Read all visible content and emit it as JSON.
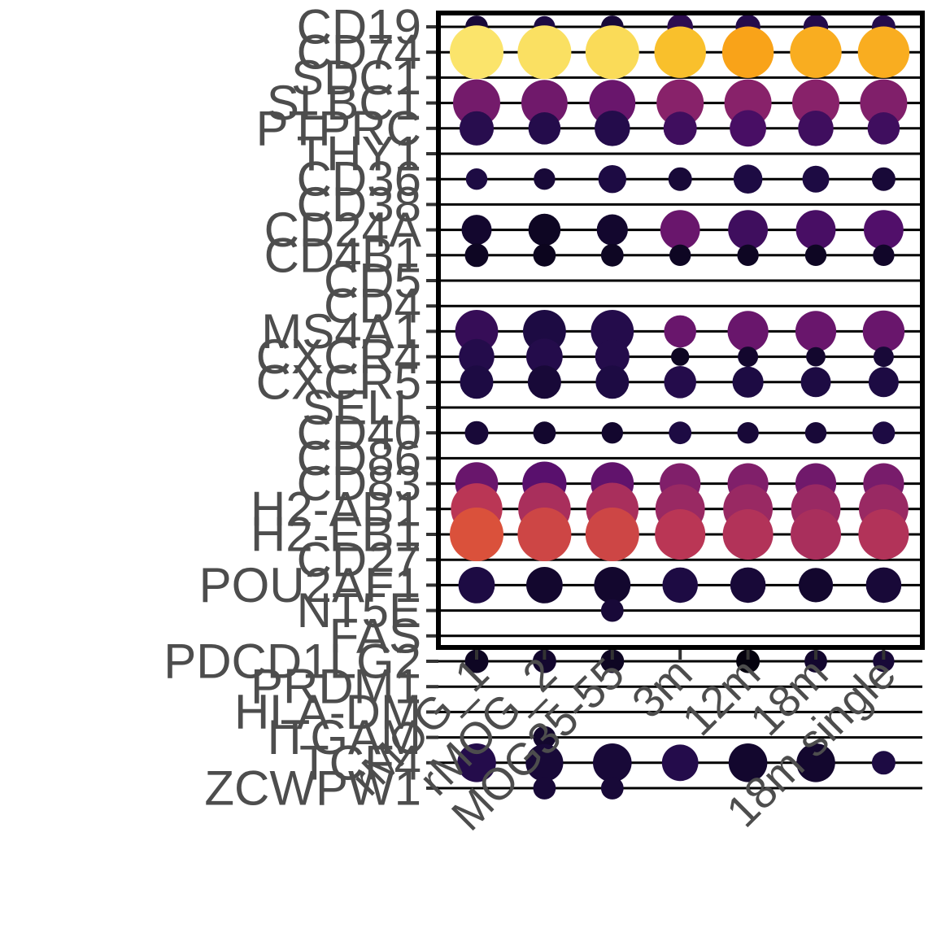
{
  "chart_data": {
    "type": "dotplot",
    "title": "",
    "xlabel": "",
    "ylabel": "",
    "grid": "horizontal lines at each gene",
    "legend": "none",
    "color_scale": "inferno (dark purple = low, yellow = high)",
    "x_categories": [
      "rMOG_1",
      "rMOG_2",
      "MOG35-55",
      "3m",
      "12m",
      "18m",
      "18m single"
    ],
    "y_categories": [
      "CD19",
      "CD74",
      "SDC1",
      "SLBC1",
      "PTPRC",
      "THY1",
      "CD36",
      "CD38",
      "CD24A",
      "CD4B1",
      "CD5",
      "CD4",
      "MS4A1",
      "CXCR4",
      "CXCR5",
      "SELL",
      "CD40",
      "CD86",
      "CD83",
      "H2-AB1",
      "H2-EB1",
      "CD27",
      "POU2AF1",
      "NT5E",
      "FAS",
      "PDCD1LG2",
      "PRDM1",
      "HLA-DM",
      "ITGAM",
      "TCF4",
      "ZCWPW1"
    ],
    "points": [
      {
        "gene": "CD19",
        "values": [
          0.1,
          0.12,
          0.1,
          0.16,
          0.14,
          0.14,
          0.14
        ],
        "sizes": [
          0.42,
          0.4,
          0.42,
          0.48,
          0.46,
          0.46,
          0.44
        ]
      },
      {
        "gene": "CD74",
        "values": [
          0.94,
          0.93,
          0.92,
          0.86,
          0.8,
          0.82,
          0.82
        ],
        "sizes": [
          1.0,
          1.0,
          1.0,
          0.96,
          0.96,
          0.96,
          0.96
        ]
      },
      {
        "gene": "SDC1",
        "values": null,
        "sizes": null
      },
      {
        "gene": "SLBC1",
        "values": [
          0.33,
          0.32,
          0.3,
          0.38,
          0.38,
          0.38,
          0.36
        ],
        "sizes": [
          0.88,
          0.86,
          0.86,
          0.88,
          0.88,
          0.88,
          0.88
        ]
      },
      {
        "gene": "PTPRC",
        "values": [
          0.15,
          0.14,
          0.14,
          0.2,
          0.22,
          0.2,
          0.2
        ],
        "sizes": [
          0.64,
          0.6,
          0.66,
          0.62,
          0.68,
          0.66,
          0.6
        ]
      },
      {
        "gene": "THY1",
        "values": null,
        "sizes": null
      },
      {
        "gene": "CD36",
        "values": [
          0.12,
          0.1,
          0.12,
          0.1,
          0.12,
          0.12,
          0.1
        ],
        "sizes": [
          0.4,
          0.4,
          0.52,
          0.44,
          0.54,
          0.5,
          0.44
        ]
      },
      {
        "gene": "CD38",
        "values": null,
        "sizes": null
      },
      {
        "gene": "CD24A",
        "values": [
          0.08,
          0.06,
          0.08,
          0.3,
          0.2,
          0.22,
          0.24
        ],
        "sizes": [
          0.56,
          0.6,
          0.58,
          0.74,
          0.74,
          0.74,
          0.74
        ]
      },
      {
        "gene": "CD4B1",
        "values": [
          0.06,
          0.05,
          0.06,
          0.06,
          0.06,
          0.06,
          0.07
        ],
        "sizes": [
          0.44,
          0.42,
          0.42,
          0.4,
          0.4,
          0.4,
          0.4
        ]
      },
      {
        "gene": "CD5",
        "values": null,
        "sizes": null
      },
      {
        "gene": "CD4",
        "values": null,
        "sizes": null
      },
      {
        "gene": "MS4A1",
        "values": [
          0.18,
          0.12,
          0.14,
          0.3,
          0.3,
          0.3,
          0.3
        ],
        "sizes": [
          0.8,
          0.8,
          0.8,
          0.6,
          0.76,
          0.76,
          0.78
        ]
      },
      {
        "gene": "CXCR4",
        "values": [
          0.14,
          0.14,
          0.14,
          0.06,
          0.08,
          0.08,
          0.1
        ],
        "sizes": [
          0.66,
          0.68,
          0.64,
          0.34,
          0.38,
          0.36,
          0.38
        ]
      },
      {
        "gene": "CXCR5",
        "values": [
          0.12,
          0.1,
          0.12,
          0.14,
          0.12,
          0.12,
          0.12
        ],
        "sizes": [
          0.62,
          0.62,
          0.62,
          0.6,
          0.58,
          0.56,
          0.56
        ]
      },
      {
        "gene": "SELL",
        "values": null,
        "sizes": null
      },
      {
        "gene": "CD40",
        "values": [
          0.1,
          0.08,
          0.08,
          0.12,
          0.1,
          0.1,
          0.12
        ],
        "sizes": [
          0.44,
          0.42,
          0.4,
          0.42,
          0.4,
          0.4,
          0.42
        ]
      },
      {
        "gene": "CD86",
        "values": null,
        "sizes": null
      },
      {
        "gene": "CD83",
        "values": [
          0.3,
          0.26,
          0.28,
          0.36,
          0.36,
          0.32,
          0.34
        ],
        "sizes": [
          0.8,
          0.82,
          0.8,
          0.76,
          0.76,
          0.76,
          0.76
        ]
      },
      {
        "gene": "H2-AB1",
        "values": [
          0.5,
          0.46,
          0.46,
          0.42,
          0.42,
          0.42,
          0.42
        ],
        "sizes": [
          0.96,
          0.98,
          0.98,
          0.92,
          0.92,
          0.92,
          0.92
        ]
      },
      {
        "gene": "H2-EB1",
        "values": [
          0.6,
          0.56,
          0.56,
          0.5,
          0.48,
          0.46,
          0.48
        ],
        "sizes": [
          1.0,
          1.0,
          1.0,
          0.94,
          0.94,
          0.94,
          0.94
        ]
      },
      {
        "gene": "CD27",
        "values": null,
        "sizes": null
      },
      {
        "gene": "POU2AF1",
        "values": [
          0.12,
          0.08,
          0.08,
          0.12,
          0.1,
          0.08,
          0.1
        ],
        "sizes": [
          0.68,
          0.68,
          0.68,
          0.66,
          0.66,
          0.64,
          0.66
        ]
      },
      {
        "gene": "NT5E",
        "values": [
          null,
          null,
          0.1,
          null,
          null,
          null,
          null
        ],
        "sizes": [
          null,
          null,
          0.42,
          null,
          null,
          null,
          null
        ]
      },
      {
        "gene": "FAS",
        "values": null,
        "sizes": null
      },
      {
        "gene": "PDCD1LG2",
        "values": [
          0.06,
          0.08,
          0.06,
          null,
          0.02,
          0.08,
          0.1
        ],
        "sizes": [
          0.44,
          0.44,
          0.44,
          null,
          0.44,
          0.42,
          0.4
        ]
      },
      {
        "gene": "PRDM1",
        "values": null,
        "sizes": null
      },
      {
        "gene": "HLA-DM",
        "values": null,
        "sizes": null
      },
      {
        "gene": "ITGAM",
        "values": [
          null,
          0.08,
          null,
          null,
          null,
          null,
          null
        ],
        "sizes": [
          null,
          0.42,
          null,
          null,
          null,
          null,
          null
        ]
      },
      {
        "gene": "TCF4",
        "values": [
          0.14,
          0.1,
          0.1,
          0.14,
          0.08,
          0.08,
          0.12
        ],
        "sizes": [
          0.72,
          0.7,
          0.72,
          0.68,
          0.72,
          0.72,
          0.44
        ]
      },
      {
        "gene": "ZCWPW1",
        "values": [
          null,
          0.1,
          0.1,
          null,
          null,
          null,
          null
        ],
        "sizes": [
          null,
          0.42,
          0.42,
          null,
          null,
          null,
          null
        ]
      }
    ]
  }
}
